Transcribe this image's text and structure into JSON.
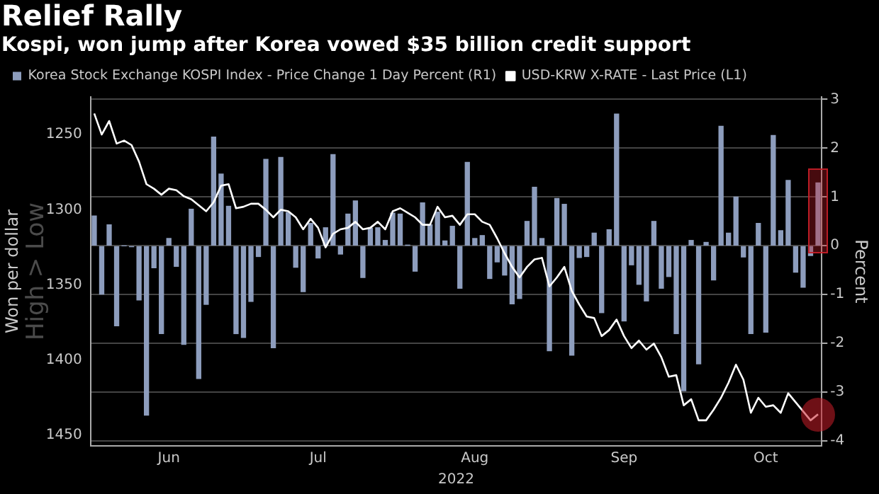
{
  "chart_data": {
    "type": "bar",
    "title": "Relief Rally",
    "subtitle": "Kospi, won jump after Korea vowed $35 billion credit support",
    "ylabel": "Won per dollar",
    "y2label": "Percent",
    "xlabel": "2022",
    "annotations": [
      "High > Low"
    ],
    "categories": [
      null,
      null,
      null,
      null,
      null,
      null,
      null,
      null,
      null,
      null,
      "Jun",
      null,
      null,
      null,
      null,
      null,
      null,
      null,
      null,
      null,
      null,
      null,
      null,
      null,
      null,
      null,
      null,
      null,
      null,
      null,
      "Jul",
      null,
      null,
      null,
      null,
      null,
      null,
      null,
      null,
      null,
      null,
      null,
      null,
      null,
      null,
      null,
      null,
      null,
      null,
      null,
      null,
      "Aug",
      null,
      null,
      null,
      null,
      null,
      null,
      null,
      null,
      null,
      null,
      null,
      null,
      null,
      null,
      null,
      null,
      null,
      null,
      null,
      "Sep",
      null,
      null,
      null,
      null,
      null,
      null,
      null,
      null,
      null,
      null,
      null,
      null,
      null,
      null,
      null,
      null,
      null,
      null,
      "Oct",
      null,
      null,
      null,
      null,
      null,
      null,
      null
    ],
    "series": [
      {
        "name": "Korea Stock Exchange KOSPI Index - Price Change 1 Day Percent (R1)",
        "axis": "y2",
        "color": "#8d9dbd",
        "values": [
          0.61,
          -0.99,
          0.43,
          -1.64,
          0,
          -0.02,
          -1.11,
          -3.47,
          -0.45,
          -1.8,
          0.15,
          -0.42,
          -2.02,
          0.75,
          -2.72,
          -1.2,
          2.23,
          1.47,
          0.81,
          -1.8,
          -1.88,
          -1.14,
          -0.22,
          1.77,
          -2.09,
          1.81,
          0.68,
          -0.44,
          -0.94,
          0.46,
          -0.25,
          0.37,
          1.87,
          -0.17,
          0.65,
          0.92,
          -0.65,
          0.36,
          0.37,
          0.11,
          0.67,
          0.65,
          0.01,
          -0.52,
          0.88,
          0.43,
          0.69,
          0.1,
          0.4,
          -0.87,
          1.71,
          0.15,
          0.21,
          -0.67,
          -0.33,
          -0.6,
          -1.19,
          -1.08,
          0.5,
          1.2,
          0.15,
          -2.15,
          0.97,
          0.85,
          -2.24,
          -0.24,
          -0.22,
          0.26,
          -1.37,
          0.33,
          2.7,
          -1.54,
          -0.39,
          -0.79,
          -1.13,
          0.5,
          -0.87,
          -0.63,
          -1.8,
          -2.97,
          0.11,
          -2.42,
          0.07,
          -0.7,
          2.45,
          0.26,
          1.0,
          -0.23,
          -1.8,
          0.46,
          -1.77,
          2.26,
          0.31,
          1.34,
          -0.54,
          -0.85,
          -0.2,
          1.29
        ]
      },
      {
        "name": "USD-KRW X-RATE - Last Price (L1)",
        "type": "line",
        "axis": "y",
        "color": "#ffffff",
        "values": [
          1236,
          1250,
          1241,
          1256,
          1254,
          1257,
          1268,
          1283,
          1286,
          1290,
          1286,
          1287,
          1291,
          1293,
          1297,
          1301,
          1295,
          1284,
          1283,
          1299,
          1298,
          1296,
          1296,
          1300,
          1305,
          1300,
          1301,
          1305,
          1313,
          1306,
          1312,
          1325,
          1316,
          1313,
          1312,
          1308,
          1313,
          1312,
          1308,
          1313,
          1301,
          1299,
          1302,
          1305,
          1310,
          1310,
          1298,
          1305,
          1304,
          1310,
          1303,
          1303,
          1308,
          1310,
          1319,
          1329,
          1338,
          1345,
          1338,
          1333,
          1332,
          1351,
          1345,
          1338,
          1354,
          1363,
          1371,
          1372,
          1384,
          1380,
          1373,
          1384,
          1392,
          1387,
          1393,
          1389,
          1398,
          1411,
          1410,
          1430,
          1426,
          1440,
          1440,
          1433,
          1425,
          1415,
          1403,
          1413,
          1435,
          1425,
          1431,
          1430,
          1435,
          1422,
          1428,
          1434,
          1440,
          1436
        ]
      }
    ],
    "ylim": [
      1457,
      1225
    ],
    "yticks": [
      1250,
      1300,
      1350,
      1400,
      1450
    ],
    "y2lim": [
      -4.1,
      3.05
    ],
    "y2ticks": [
      -4,
      -3,
      -2,
      -1,
      0,
      1,
      2,
      3
    ],
    "grid": "y",
    "legend": "top left",
    "marker": "none",
    "line_style": "solid"
  }
}
